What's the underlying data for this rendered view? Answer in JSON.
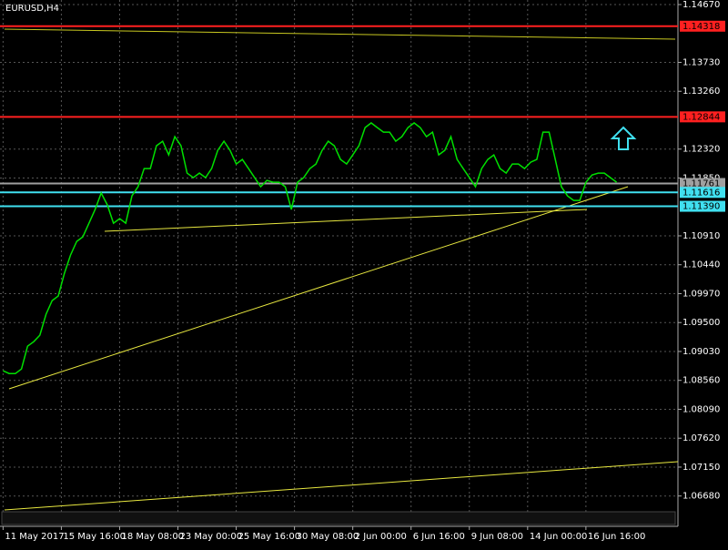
{
  "chart_data": {
    "type": "line",
    "title": "EURUSD,H4",
    "x": [
      0,
      2,
      4,
      6,
      8,
      10,
      12,
      14,
      16,
      18,
      20,
      22,
      24,
      26,
      28,
      30,
      32,
      34,
      36,
      38,
      40,
      42,
      44,
      46,
      48,
      50,
      52,
      54,
      56,
      58,
      60,
      62,
      64,
      66,
      68,
      70,
      72,
      74,
      76,
      78,
      80,
      82,
      84,
      86,
      88,
      90,
      92,
      94,
      96,
      98,
      100,
      102,
      104,
      106,
      108,
      110,
      112,
      114,
      116,
      118,
      120,
      122,
      124,
      126,
      128,
      130,
      132,
      134,
      136,
      138,
      140,
      142,
      144,
      146,
      148,
      150,
      152,
      154,
      156,
      158,
      160,
      162,
      164,
      166,
      168,
      170,
      172,
      174,
      176,
      178,
      180,
      182,
      184,
      186,
      188,
      190,
      192,
      194,
      196,
      198,
      200
    ],
    "series": [
      {
        "color": "#00e000",
        "values": [
          1.08716,
          1.08672,
          1.08672,
          1.08746,
          1.09116,
          1.0919,
          1.09294,
          1.09635,
          1.09857,
          1.09931,
          1.10301,
          1.10598,
          1.1082,
          1.10894,
          1.11116,
          1.11338,
          1.11605,
          1.11412,
          1.11116,
          1.1119,
          1.11116,
          1.1156,
          1.11708,
          1.12004,
          1.12004,
          1.12374,
          1.12448,
          1.12226,
          1.12522,
          1.12374,
          1.1193,
          1.11856,
          1.1193,
          1.11856,
          1.12004,
          1.123,
          1.12448,
          1.123,
          1.12078,
          1.12152,
          1.12004,
          1.11856,
          1.11708,
          1.11812,
          1.11782,
          1.11782,
          1.11708,
          1.11338,
          1.11782,
          1.11856,
          1.12004,
          1.12078,
          1.123,
          1.12448,
          1.12374,
          1.12152,
          1.12078,
          1.12226,
          1.12374,
          1.1267,
          1.12745,
          1.1267,
          1.12596,
          1.12596,
          1.12448,
          1.12522,
          1.1267,
          1.12745,
          1.1267,
          1.12522,
          1.12596,
          1.12226,
          1.123,
          1.12522,
          1.12152,
          1.12004,
          1.11856,
          1.11708,
          1.12004,
          1.12152,
          1.12226,
          1.12004,
          1.1193,
          1.12078,
          1.12078,
          1.12004,
          1.12108,
          1.12152,
          1.12596,
          1.12596,
          1.12152,
          1.11708,
          1.1156,
          1.11486,
          1.11486,
          1.11782,
          1.119,
          1.1193,
          1.1193,
          1.11856,
          1.11782
        ]
      }
    ],
    "xlim": [
      -1,
      220
    ],
    "xticks": [
      {
        "value": 0,
        "label": "11 May 2017"
      },
      {
        "value": 19,
        "label": "15 May 16:00"
      },
      {
        "value": 38,
        "label": "18 May 08:00"
      },
      {
        "value": 57,
        "label": "23 May 00:00"
      },
      {
        "value": 76,
        "label": "25 May 16:00"
      },
      {
        "value": 95,
        "label": "30 May 08:00"
      },
      {
        "value": 114,
        "label": "2 Jun 00:00"
      },
      {
        "value": 133,
        "label": "6 Jun 16:00"
      },
      {
        "value": 152,
        "label": "9 Jun 08:00"
      },
      {
        "value": 171,
        "label": "14 Jun 00:00"
      },
      {
        "value": 190,
        "label": "16 Jun 16:00"
      }
    ],
    "ylim": [
      1.06424,
      1.14744
    ],
    "yticks": [
      {
        "value": 1.1467,
        "label": "1.14670"
      },
      {
        "value": 1.1373,
        "label": "1.13730"
      },
      {
        "value": 1.1326,
        "label": "1.13260"
      },
      {
        "value": 1.1232,
        "label": "1.12320"
      },
      {
        "value": 1.1185,
        "label": "1.11850"
      },
      {
        "value": 1.1091,
        "label": "1.10910"
      },
      {
        "value": 1.1044,
        "label": "1.10440"
      },
      {
        "value": 1.0997,
        "label": "1.09970"
      },
      {
        "value": 1.095,
        "label": "1.09500"
      },
      {
        "value": 1.0903,
        "label": "1.09030"
      },
      {
        "value": 1.0856,
        "label": "1.08560"
      },
      {
        "value": 1.0809,
        "label": "1.08090"
      },
      {
        "value": 1.0762,
        "label": "1.07620"
      },
      {
        "value": 1.0715,
        "label": "1.07150"
      },
      {
        "value": 1.0668,
        "label": "1.06680"
      }
    ],
    "grid": true,
    "levels": [
      {
        "value": 1.14318,
        "color": "#ff2020"
      },
      {
        "value": 1.12844,
        "color": "#ff2020"
      },
      {
        "value": 1.11761,
        "color": "#a0a0a0"
      },
      {
        "value": 1.11616,
        "color": "#40e0f0"
      },
      {
        "value": 1.1139,
        "label": "1.11390",
        "color": "#40e0f0"
      }
    ]
  }
}
